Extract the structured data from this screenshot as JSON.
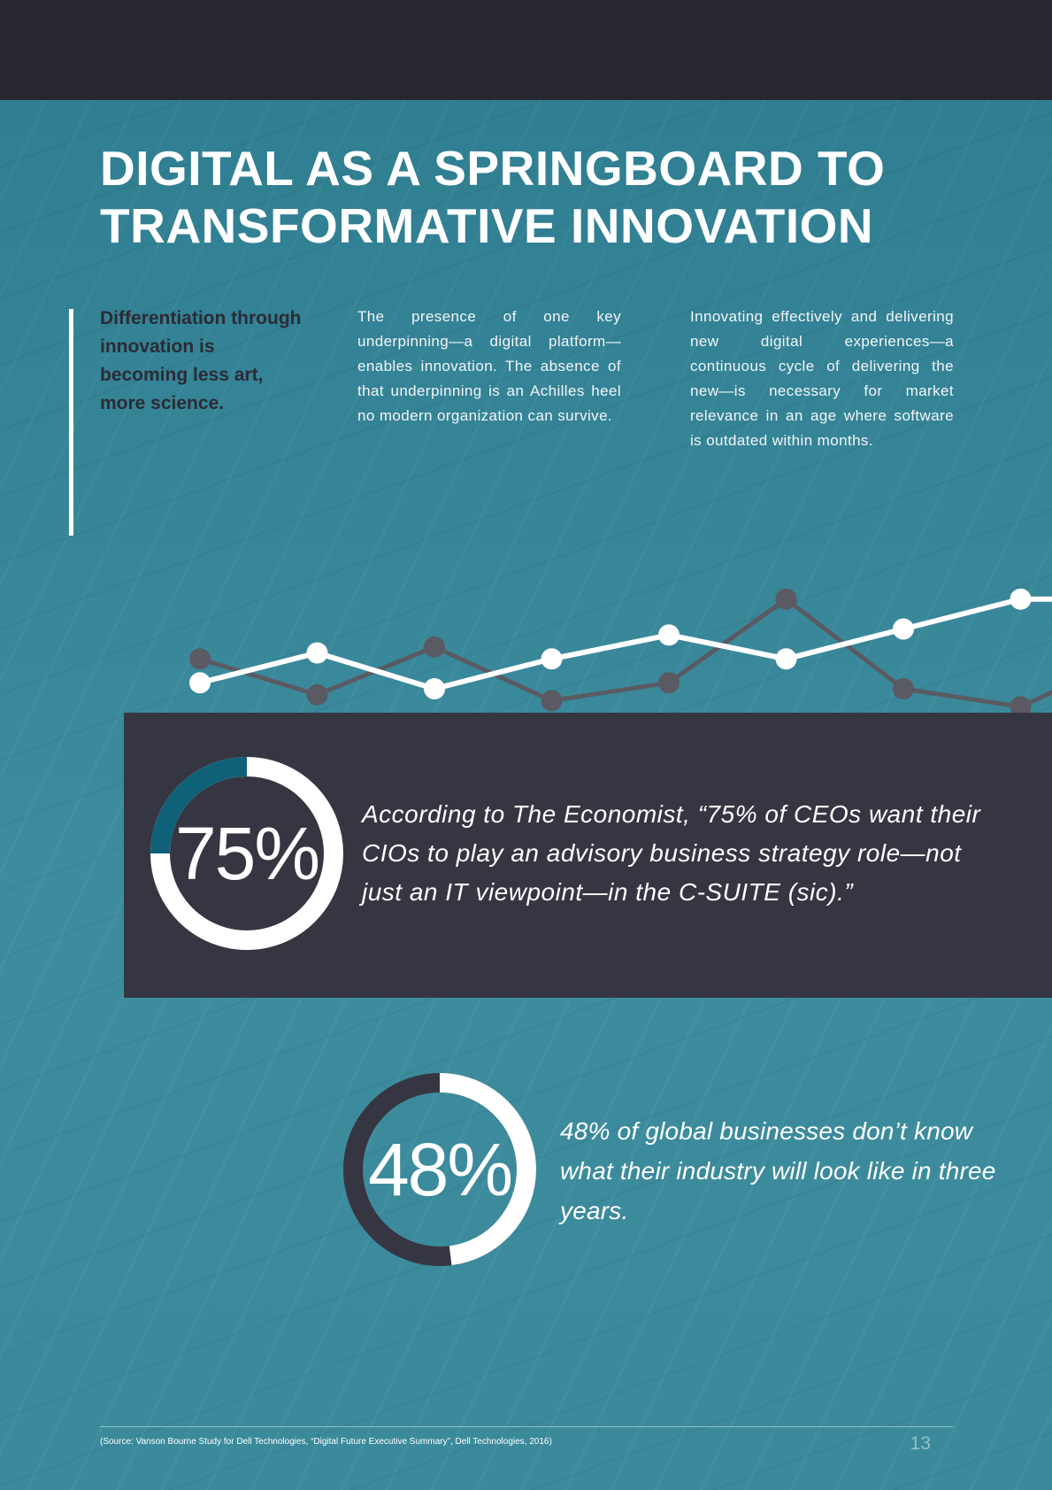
{
  "title_line1": "DIGITAL AS A SPRINGBOARD TO",
  "title_line2": "TRANSFORMATIVE INNOVATION",
  "lead": "Differentiation through innovation is becoming less art, more science.",
  "column_a": "The presence of one key underpinning—a digital platform—enables innovation. The absence of that underpinning is an Achilles heel no modern organization can survive.",
  "column_b": "Innovating effectively and delivering new digital experiences—a continuous cycle of delivering the new—is necessary for market relevance in an age where software is outdated within months.",
  "stat_75": {
    "label": "75%",
    "value": 75,
    "quote": "According to The Economist, “75% of CEOs want their CIOs to play an advisory business strategy role—not just an IT viewpoint—in the C-SUITE (sic).”"
  },
  "stat_48": {
    "label": "48%",
    "value": 48,
    "quote": "48% of global businesses don’t know what their industry will look like in three years."
  },
  "source": "(Source: Vanson Bourne Study for Dell Technologies, “Digital Future Executive Summary”, Dell Technologies, 2016)",
  "page_number": "13",
  "chart_data": {
    "type": "line",
    "title": "",
    "xlabel": "",
    "ylabel": "",
    "x": [
      1,
      2,
      3,
      4,
      5,
      6,
      7,
      8,
      9
    ],
    "series": [
      {
        "values": [
          45,
          15,
          55,
          10,
          25,
          95,
          20,
          5,
          50
        ],
        "color": "#5a5a62"
      },
      {
        "values": [
          25,
          50,
          20,
          45,
          65,
          45,
          70,
          95,
          95
        ],
        "color": "#ffffff"
      }
    ],
    "ylim": [
      0,
      100
    ],
    "grid": false,
    "legend": "none"
  },
  "colors": {
    "dark": "#272730",
    "panel": "#363642",
    "teal_accent": "#0f6178",
    "background": "#2f7e91"
  }
}
